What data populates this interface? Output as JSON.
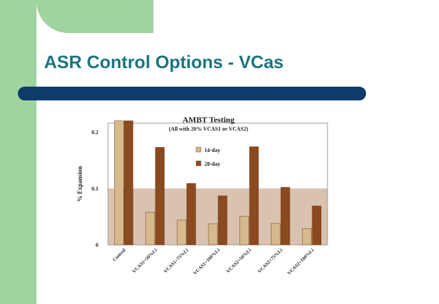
{
  "slide": {
    "title": "ASR Control Options - VCas",
    "colors": {
      "frame_green": "#9fd39f",
      "title_teal": "#1a7680",
      "bar_navy": "#0c3c6a"
    }
  },
  "chart_data": {
    "type": "bar",
    "title": "AMBT Testing",
    "subtitle": "(All with 20% VCAS1 or VCAS2)",
    "xlabel": "",
    "ylabel": "% Expansion",
    "categories": [
      "Control",
      "VCAS1+50%Li",
      "VCAS1+75%Li",
      "VCAS1+100%Li",
      "VCAS2+50%Li",
      "VCAS2+75%Li",
      "VCAS2+100%Li"
    ],
    "series": [
      {
        "name": "14-day",
        "values": [
          0.22,
          0.058,
          0.044,
          0.037,
          0.051,
          0.038,
          0.029
        ],
        "color": "#d7b98e"
      },
      {
        "name": "28-day",
        "values": [
          0.22,
          0.173,
          0.109,
          0.087,
          0.174,
          0.102,
          0.069
        ],
        "color": "#8b4a1f"
      }
    ],
    "yticks": [
      "0",
      "0.1",
      "0.2"
    ],
    "ylim": [
      0,
      0.2
    ],
    "threshold_band": {
      "upper": 0.1,
      "color": "#d9c2b0"
    },
    "grid": false,
    "legend_position": "middle-right"
  }
}
